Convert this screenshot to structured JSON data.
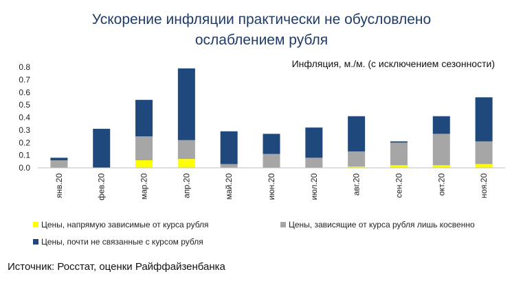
{
  "title_line1": "Ускорение инфляции практически не обусловлено",
  "title_line2": "ослаблением рубля",
  "source": "Источник: Росстат, оценки Райффайзенбанка",
  "colors": {
    "title": "#1f3b68",
    "direct": "#ffff00",
    "indirect": "#a6a6a6",
    "unrelated": "#1f487c",
    "axis": "#bfbfbf"
  },
  "chart_data": {
    "type": "bar",
    "stacked": true,
    "title": "Инфляция, м./м. (с исключением сезонности)",
    "xlabel": "",
    "ylabel": "",
    "ylim": [
      0,
      0.8
    ],
    "yticks": [
      "0.0",
      "0.1",
      "0.2",
      "0.3",
      "0.4",
      "0.5",
      "0.6",
      "0.7",
      "0.8"
    ],
    "legend_position": "bottom",
    "categories": [
      "янв.20",
      "фев.20",
      "мар.20",
      "апр.20",
      "май.20",
      "июн.20",
      "июл.20",
      "авг.20",
      "сен.20",
      "окт.20",
      "ноя.20"
    ],
    "series": [
      {
        "name": "Цены, напрямую зависимые от курса рубля",
        "color_key": "direct",
        "values": [
          0.0,
          0.0,
          0.06,
          0.07,
          0.0,
          0.0,
          0.0,
          0.01,
          0.02,
          0.02,
          0.03
        ]
      },
      {
        "name": "Цены, зависящие от курса рубля лишь косвенно",
        "color_key": "indirect",
        "values": [
          0.06,
          0.0,
          0.19,
          0.15,
          0.03,
          0.11,
          0.08,
          0.12,
          0.18,
          0.25,
          0.18
        ]
      },
      {
        "name": "Цены, почти не связанные с курсом рубля",
        "color_key": "unrelated",
        "values": [
          0.02,
          0.31,
          0.29,
          0.57,
          0.26,
          0.16,
          0.24,
          0.28,
          0.01,
          0.14,
          0.35
        ]
      }
    ]
  }
}
